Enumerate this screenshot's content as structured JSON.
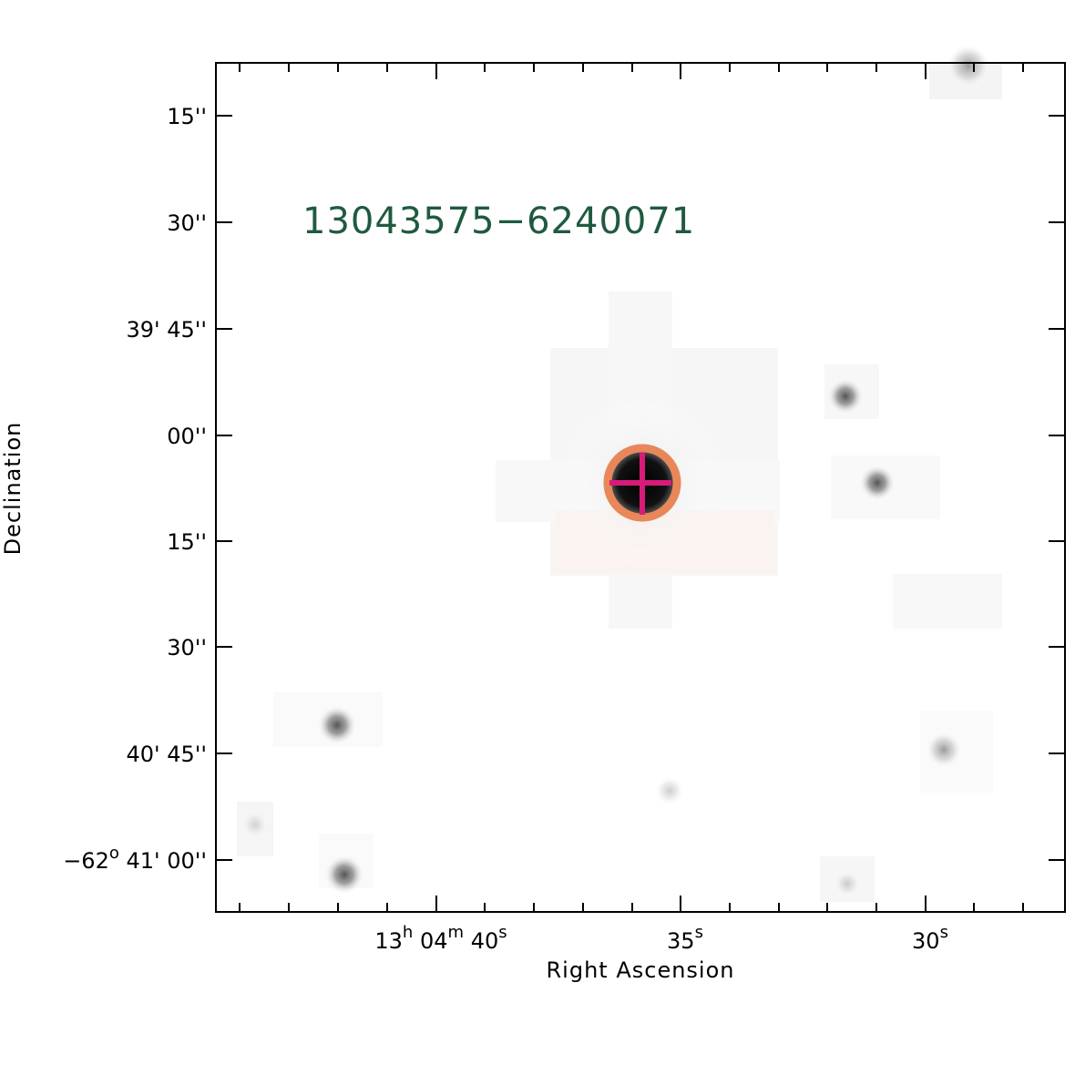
{
  "image": {
    "source_label": "13043575−6240071",
    "source_label_color": "#1f5a3f",
    "x_axis_title": "Right Ascension",
    "y_axis_title": "Declination",
    "ra_ticks": [
      {
        "h": "13",
        "hsup": "h",
        "m": "04",
        "msup": "m",
        "s": "40",
        "ssup": "s"
      },
      {
        "s": "35",
        "ssup": "s"
      },
      {
        "s": "30",
        "ssup": "s"
      }
    ],
    "dec_ticks": [
      {
        "text": "15''"
      },
      {
        "text": "30''"
      },
      {
        "text": "39' 45''"
      },
      {
        "text": "00''"
      },
      {
        "text": "15''"
      },
      {
        "text": "30''"
      },
      {
        "text": "40' 45''"
      },
      {
        "text": "−62",
        "sup": "o",
        "rest": " 41' 00''"
      }
    ],
    "aperture_color": "#e8875a",
    "crosshair_color": "#d81b7a",
    "frame_color": "#000000"
  }
}
